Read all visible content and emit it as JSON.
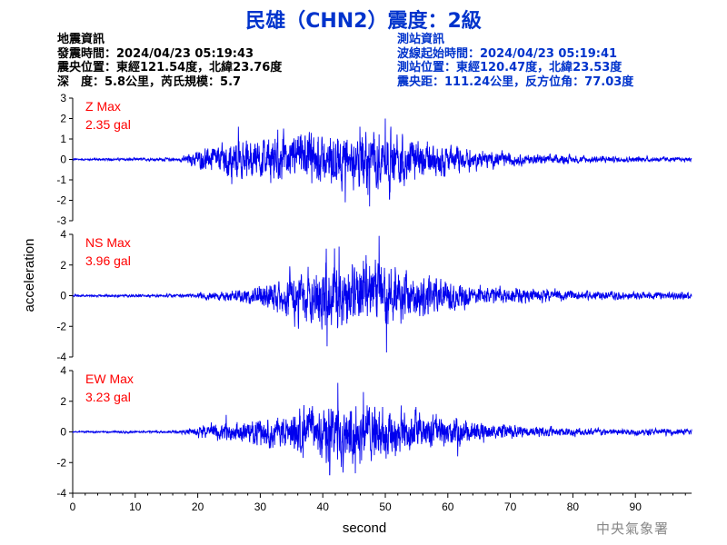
{
  "title": "民雄（CHN2）震度：2級",
  "earthquake_info": {
    "heading": "地震資訊",
    "time": "發震時間：2024/04/23 05:19:43",
    "epicenter": "震央位置：東經121.54度，北緯23.76度",
    "depth_magnitude": "深　度：5.8公里，芮氏規模：5.7"
  },
  "station_info": {
    "heading": "測站資訊",
    "wave_start": "波線起始時間：2024/04/23 05:19:41",
    "location": "測站位置：東經120.47度，北緯23.53度",
    "distance": "震央距：111.24公里，反方位角：77.03度"
  },
  "credit": "中央氣象署",
  "colors": {
    "title": "#0033cc",
    "trace": "#0000ee",
    "max_label": "#ff0000"
  },
  "chart_data": {
    "type": "line",
    "xlabel": "second",
    "ylabel": "acceleration",
    "xlim": [
      0,
      99
    ],
    "x_ticks": [
      0,
      10,
      20,
      30,
      40,
      50,
      60,
      70,
      80,
      90
    ],
    "series": [
      {
        "name": "Z",
        "max_label": "Z Max",
        "max_value": "2.35 gal",
        "ylim": [
          -3,
          3
        ],
        "y_ticks": [
          3,
          2,
          1,
          0,
          -1,
          -2,
          -3
        ],
        "envelope": {
          "t": [
            0,
            17,
            20,
            25,
            30,
            35,
            40,
            45,
            50,
            55,
            60,
            65,
            70,
            80,
            99
          ],
          "amp": [
            0.05,
            0.1,
            0.5,
            1.0,
            1.1,
            1.25,
            1.35,
            1.5,
            1.55,
            1.15,
            0.8,
            0.5,
            0.35,
            0.2,
            0.12
          ]
        },
        "peaks": [
          {
            "t": 26.5,
            "v": 1.6
          },
          {
            "t": 47.5,
            "v": -2.3
          },
          {
            "t": 50.0,
            "v": 2.0
          },
          {
            "t": 43.6,
            "v": -2.1
          }
        ]
      },
      {
        "name": "NS",
        "max_label": "NS Max",
        "max_value": "3.96 gal",
        "ylim": [
          -4,
          4
        ],
        "y_ticks": [
          4,
          2,
          0,
          -2,
          -4
        ],
        "envelope": {
          "t": [
            0,
            18,
            22,
            28,
            32,
            36,
            40,
            44,
            48,
            52,
            56,
            60,
            66,
            72,
            80,
            99
          ],
          "amp": [
            0.08,
            0.12,
            0.3,
            0.5,
            1.1,
            1.8,
            2.3,
            2.4,
            2.4,
            1.9,
            1.5,
            1.2,
            0.75,
            0.5,
            0.35,
            0.25
          ]
        },
        "peaks": [
          {
            "t": 40.7,
            "v": -3.3
          },
          {
            "t": 42.6,
            "v": 3.2
          },
          {
            "t": 49.0,
            "v": 3.9
          },
          {
            "t": 50.2,
            "v": -3.7
          }
        ]
      },
      {
        "name": "EW",
        "max_label": "EW Max",
        "max_value": "3.23 gal",
        "ylim": [
          -4,
          4
        ],
        "y_ticks": [
          4,
          2,
          0,
          -2,
          -4
        ],
        "envelope": {
          "t": [
            0,
            17,
            20,
            25,
            30,
            35,
            40,
            44,
            48,
            52,
            56,
            60,
            66,
            72,
            80,
            99
          ],
          "amp": [
            0.06,
            0.1,
            0.35,
            0.75,
            1.0,
            1.35,
            2.0,
            2.2,
            2.1,
            1.8,
            1.3,
            1.0,
            0.7,
            0.45,
            0.3,
            0.22
          ]
        },
        "peaks": [
          {
            "t": 42.4,
            "v": 3.2
          },
          {
            "t": 41.1,
            "v": -2.8
          },
          {
            "t": 46.5,
            "v": 2.6
          },
          {
            "t": 45.2,
            "v": -2.7
          }
        ]
      }
    ]
  }
}
